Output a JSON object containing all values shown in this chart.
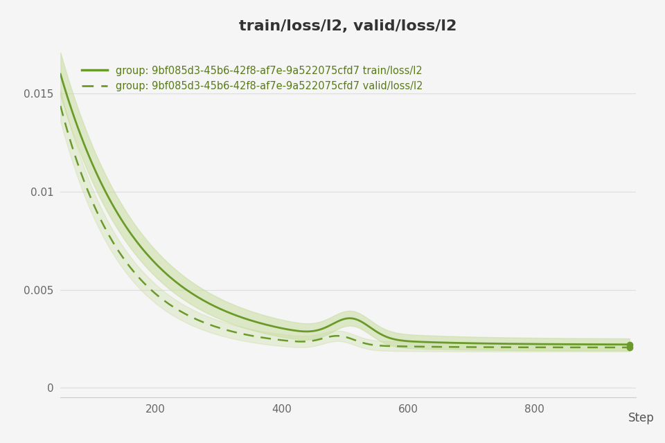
{
  "title": "train/loss/l2, valid/loss/l2",
  "xlabel": "Step",
  "ylabel": "",
  "line_color": "#6a9a2a",
  "fill_color": "#c8dca0",
  "background_color": "#f7f7f7",
  "legend_solid_label": "group: 9bf085d3-45b6-42f8-af7e-9a522075cfd7 train/loss/l2",
  "legend_dashed_label": "group: 9bf085d3-45b6-42f8-af7e-9a522075cfd7 valid/loss/l2",
  "xlim": [
    50,
    960
  ],
  "ylim": [
    -0.0005,
    0.0175
  ],
  "yticks": [
    0,
    0.005,
    0.01,
    0.015
  ],
  "xticks": [
    200,
    400,
    600,
    800
  ]
}
